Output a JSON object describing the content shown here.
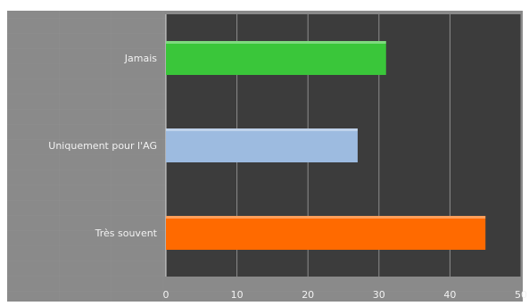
{
  "chart_data": {
    "type": "bar",
    "orientation": "horizontal",
    "categories": [
      "Jamais",
      "Uniquement pour l'AG",
      "Très souvent"
    ],
    "values": [
      31,
      27,
      45
    ],
    "colors": [
      "#3ac63a",
      "#9dbbe0",
      "#ff6a00"
    ],
    "xlim": [
      0,
      50
    ],
    "x_ticks": [
      "0",
      "10",
      "20",
      "30",
      "40",
      "50"
    ],
    "grid": true,
    "title": "",
    "xlabel": "",
    "ylabel": ""
  }
}
